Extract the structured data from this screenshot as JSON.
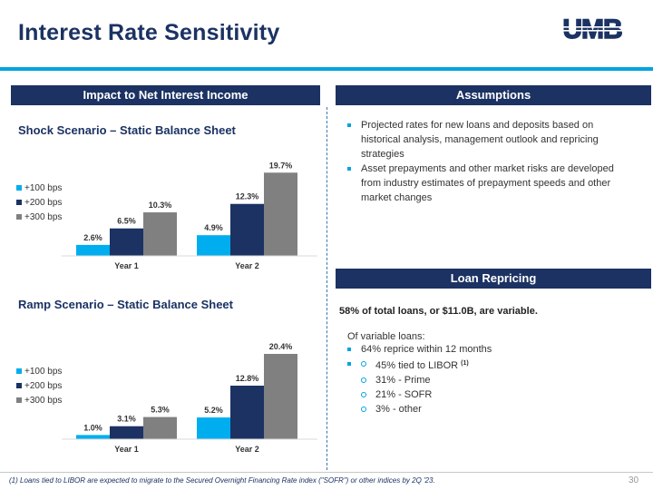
{
  "page": {
    "title": "Interest Rate Sensitivity",
    "logo_text": "UMB",
    "page_number": "30",
    "footnote": "(1) Loans tied to LIBOR are expected to migrate to the Secured Overnight Financing Rate index (\"SOFR\") or other indices by 2Q '23."
  },
  "headers": {
    "left": "Impact to Net Interest Income",
    "assumptions": "Assumptions",
    "loan_repricing": "Loan Repricing"
  },
  "colors": {
    "navy": "#1b3263",
    "accent_blue": "#00a3e0",
    "grey": "#808080"
  },
  "chart_data": [
    {
      "type": "bar",
      "title": "Shock Scenario – Static Balance Sheet",
      "categories": [
        "Year 1",
        "Year 2"
      ],
      "series": [
        {
          "name": "+100 bps",
          "color": "#00aeef",
          "values": [
            2.6,
            4.9
          ],
          "labels": [
            "2.6%",
            "4.9%"
          ]
        },
        {
          "name": "+200 bps",
          "color": "#1b3263",
          "values": [
            6.5,
            12.3
          ],
          "labels": [
            "6.5%",
            "12.3%"
          ]
        },
        {
          "name": "+300 bps",
          "color": "#808080",
          "values": [
            10.3,
            19.7
          ],
          "labels": [
            "10.3%",
            "19.7%"
          ]
        }
      ],
      "ylim": [
        0,
        20.4
      ],
      "grid": false,
      "legend": "left"
    },
    {
      "type": "bar",
      "title": "Ramp Scenario – Static Balance Sheet",
      "categories": [
        "Year 1",
        "Year 2"
      ],
      "series": [
        {
          "name": "+100 bps",
          "color": "#00aeef",
          "values": [
            1.0,
            5.2
          ],
          "labels": [
            "1.0%",
            "5.2%"
          ]
        },
        {
          "name": "+200 bps",
          "color": "#1b3263",
          "values": [
            3.1,
            12.8
          ],
          "labels": [
            "3.1%",
            "12.8%"
          ]
        },
        {
          "name": "+300 bps",
          "color": "#808080",
          "values": [
            5.3,
            20.4
          ],
          "labels": [
            "5.3%",
            "20.4%"
          ]
        }
      ],
      "ylim": [
        0,
        20.4
      ],
      "grid": false,
      "legend": "left"
    }
  ],
  "assumptions": {
    "bullets": [
      "Projected rates for new loans and deposits based on historical analysis, management outlook and repricing strategies",
      "Asset prepayments and other market risks are developed from industry estimates of prepayment speeds and other market changes"
    ]
  },
  "loan_repricing": {
    "summary": "58% of total loans, or $11.0B, are variable.",
    "intro": "Of variable loans:",
    "bullet": "64% reprice within 12 months",
    "sub_bullets": [
      {
        "text": "45% tied to LIBOR ",
        "footnote_ref": "(1)"
      },
      {
        "text": "31% - Prime"
      },
      {
        "text": "21% - SOFR"
      },
      {
        "text": "3% - other"
      }
    ]
  }
}
